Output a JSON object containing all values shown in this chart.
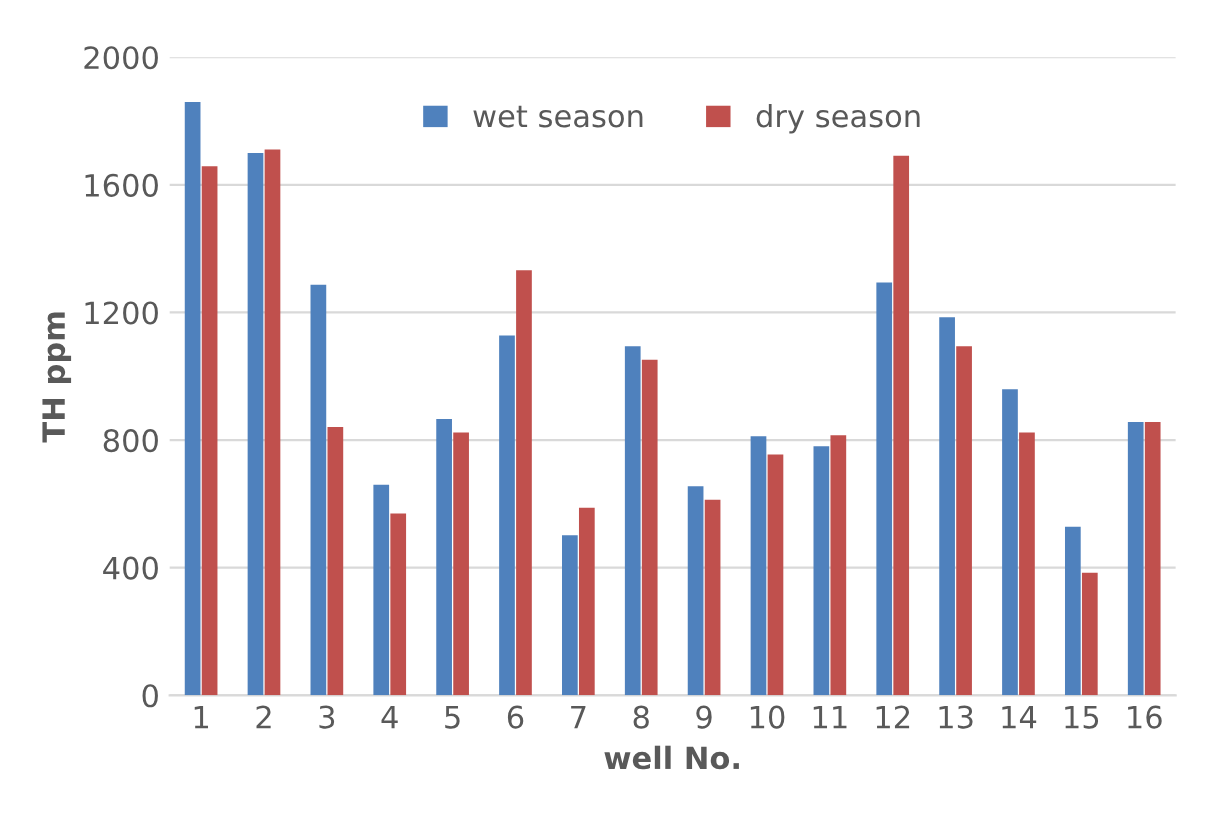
{
  "chart_data": {
    "type": "bar",
    "xlabel": "well No.",
    "ylabel": "TH ppm",
    "categories": [
      "1",
      "2",
      "3",
      "4",
      "5",
      "6",
      "7",
      "8",
      "9",
      "10",
      "11",
      "12",
      "13",
      "14",
      "15",
      "16"
    ],
    "series": [
      {
        "name": "wet season",
        "color": "#4f81bd",
        "values": [
          1860,
          1700,
          1287,
          660,
          866,
          1128,
          502,
          1094,
          655,
          812,
          781,
          1294,
          1185,
          959,
          528,
          857
        ]
      },
      {
        "name": "dry season",
        "color": "#c0504d",
        "values": [
          1658,
          1711,
          841,
          570,
          824,
          1332,
          588,
          1052,
          613,
          755,
          815,
          1691,
          1094,
          824,
          384,
          857
        ]
      }
    ],
    "ylim": [
      0,
      2000
    ],
    "yticks": [
      0,
      400,
      800,
      1200,
      1600,
      2000
    ],
    "grid": "y",
    "legend": "top"
  }
}
